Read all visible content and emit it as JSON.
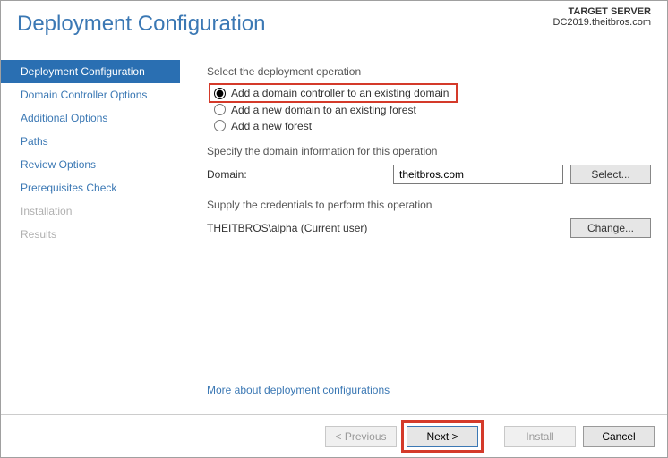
{
  "header": {
    "title": "Deployment Configuration",
    "target_label": "TARGET SERVER",
    "target_server": "DC2019.theitbros.com"
  },
  "sidebar": {
    "items": [
      {
        "label": "Deployment Configuration",
        "state": "active"
      },
      {
        "label": "Domain Controller Options",
        "state": "normal"
      },
      {
        "label": "Additional Options",
        "state": "normal"
      },
      {
        "label": "Paths",
        "state": "normal"
      },
      {
        "label": "Review Options",
        "state": "normal"
      },
      {
        "label": "Prerequisites Check",
        "state": "normal"
      },
      {
        "label": "Installation",
        "state": "disabled"
      },
      {
        "label": "Results",
        "state": "disabled"
      }
    ]
  },
  "main": {
    "select_op_label": "Select the deployment operation",
    "radios": [
      {
        "label": "Add a domain controller to an existing domain",
        "selected": true,
        "highlight": true
      },
      {
        "label": "Add a new domain to an existing forest",
        "selected": false,
        "highlight": false
      },
      {
        "label": "Add a new forest",
        "selected": false,
        "highlight": false
      }
    ],
    "specify_domain_label": "Specify the domain information for this operation",
    "domain_label": "Domain:",
    "domain_value": "theitbros.com",
    "select_button": "Select...",
    "supply_creds_label": "Supply the credentials to perform this operation",
    "cred_text": "THEITBROS\\alpha (Current user)",
    "change_button": "Change...",
    "learn_more": "More about deployment configurations"
  },
  "footer": {
    "previous": "< Previous",
    "next": "Next >",
    "install": "Install",
    "cancel": "Cancel"
  }
}
